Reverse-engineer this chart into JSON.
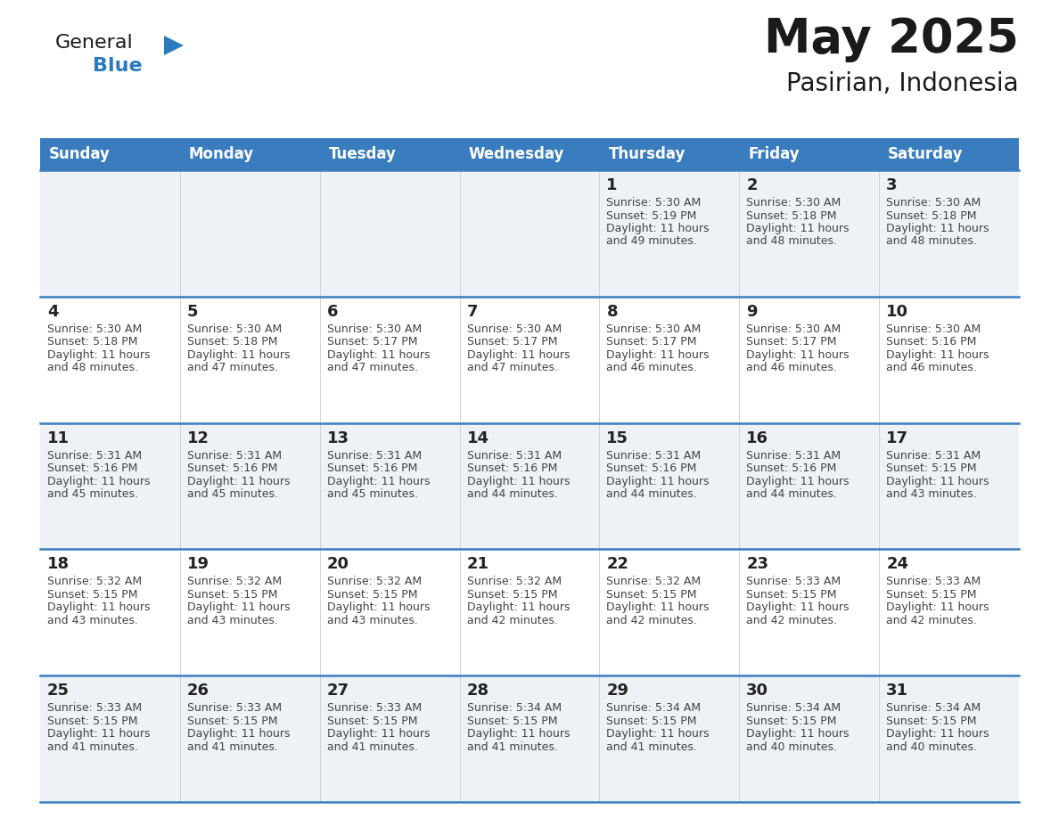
{
  "title": "May 2025",
  "subtitle": "Pasirian, Indonesia",
  "header_bg": "#3a7dbf",
  "header_text": "#ffffff",
  "row_bg_odd": "#eef2f7",
  "row_bg_even": "#ffffff",
  "border_color": "#3a7dbf",
  "text_color": "#222222",
  "info_color": "#444444",
  "logo_black": "#1a1a1a",
  "logo_blue": "#2a7abf",
  "triangle_blue": "#2a7abf",
  "day_headers": [
    "Sunday",
    "Monday",
    "Tuesday",
    "Wednesday",
    "Thursday",
    "Friday",
    "Saturday"
  ],
  "days": [
    {
      "num": "",
      "sunrise": "",
      "sunset": "",
      "daylight_h": "",
      "daylight_m": ""
    },
    {
      "num": "",
      "sunrise": "",
      "sunset": "",
      "daylight_h": "",
      "daylight_m": ""
    },
    {
      "num": "",
      "sunrise": "",
      "sunset": "",
      "daylight_h": "",
      "daylight_m": ""
    },
    {
      "num": "",
      "sunrise": "",
      "sunset": "",
      "daylight_h": "",
      "daylight_m": ""
    },
    {
      "num": "1",
      "sunrise": "5:30 AM",
      "sunset": "5:19 PM",
      "daylight_h": "11 hours",
      "daylight_m": "and 49 minutes."
    },
    {
      "num": "2",
      "sunrise": "5:30 AM",
      "sunset": "5:18 PM",
      "daylight_h": "11 hours",
      "daylight_m": "and 48 minutes."
    },
    {
      "num": "3",
      "sunrise": "5:30 AM",
      "sunset": "5:18 PM",
      "daylight_h": "11 hours",
      "daylight_m": "and 48 minutes."
    },
    {
      "num": "4",
      "sunrise": "5:30 AM",
      "sunset": "5:18 PM",
      "daylight_h": "11 hours",
      "daylight_m": "and 48 minutes."
    },
    {
      "num": "5",
      "sunrise": "5:30 AM",
      "sunset": "5:18 PM",
      "daylight_h": "11 hours",
      "daylight_m": "and 47 minutes."
    },
    {
      "num": "6",
      "sunrise": "5:30 AM",
      "sunset": "5:17 PM",
      "daylight_h": "11 hours",
      "daylight_m": "and 47 minutes."
    },
    {
      "num": "7",
      "sunrise": "5:30 AM",
      "sunset": "5:17 PM",
      "daylight_h": "11 hours",
      "daylight_m": "and 47 minutes."
    },
    {
      "num": "8",
      "sunrise": "5:30 AM",
      "sunset": "5:17 PM",
      "daylight_h": "11 hours",
      "daylight_m": "and 46 minutes."
    },
    {
      "num": "9",
      "sunrise": "5:30 AM",
      "sunset": "5:17 PM",
      "daylight_h": "11 hours",
      "daylight_m": "and 46 minutes."
    },
    {
      "num": "10",
      "sunrise": "5:30 AM",
      "sunset": "5:16 PM",
      "daylight_h": "11 hours",
      "daylight_m": "and 46 minutes."
    },
    {
      "num": "11",
      "sunrise": "5:31 AM",
      "sunset": "5:16 PM",
      "daylight_h": "11 hours",
      "daylight_m": "and 45 minutes."
    },
    {
      "num": "12",
      "sunrise": "5:31 AM",
      "sunset": "5:16 PM",
      "daylight_h": "11 hours",
      "daylight_m": "and 45 minutes."
    },
    {
      "num": "13",
      "sunrise": "5:31 AM",
      "sunset": "5:16 PM",
      "daylight_h": "11 hours",
      "daylight_m": "and 45 minutes."
    },
    {
      "num": "14",
      "sunrise": "5:31 AM",
      "sunset": "5:16 PM",
      "daylight_h": "11 hours",
      "daylight_m": "and 44 minutes."
    },
    {
      "num": "15",
      "sunrise": "5:31 AM",
      "sunset": "5:16 PM",
      "daylight_h": "11 hours",
      "daylight_m": "and 44 minutes."
    },
    {
      "num": "16",
      "sunrise": "5:31 AM",
      "sunset": "5:16 PM",
      "daylight_h": "11 hours",
      "daylight_m": "and 44 minutes."
    },
    {
      "num": "17",
      "sunrise": "5:31 AM",
      "sunset": "5:15 PM",
      "daylight_h": "11 hours",
      "daylight_m": "and 43 minutes."
    },
    {
      "num": "18",
      "sunrise": "5:32 AM",
      "sunset": "5:15 PM",
      "daylight_h": "11 hours",
      "daylight_m": "and 43 minutes."
    },
    {
      "num": "19",
      "sunrise": "5:32 AM",
      "sunset": "5:15 PM",
      "daylight_h": "11 hours",
      "daylight_m": "and 43 minutes."
    },
    {
      "num": "20",
      "sunrise": "5:32 AM",
      "sunset": "5:15 PM",
      "daylight_h": "11 hours",
      "daylight_m": "and 43 minutes."
    },
    {
      "num": "21",
      "sunrise": "5:32 AM",
      "sunset": "5:15 PM",
      "daylight_h": "11 hours",
      "daylight_m": "and 42 minutes."
    },
    {
      "num": "22",
      "sunrise": "5:32 AM",
      "sunset": "5:15 PM",
      "daylight_h": "11 hours",
      "daylight_m": "and 42 minutes."
    },
    {
      "num": "23",
      "sunrise": "5:33 AM",
      "sunset": "5:15 PM",
      "daylight_h": "11 hours",
      "daylight_m": "and 42 minutes."
    },
    {
      "num": "24",
      "sunrise": "5:33 AM",
      "sunset": "5:15 PM",
      "daylight_h": "11 hours",
      "daylight_m": "and 42 minutes."
    },
    {
      "num": "25",
      "sunrise": "5:33 AM",
      "sunset": "5:15 PM",
      "daylight_h": "11 hours",
      "daylight_m": "and 41 minutes."
    },
    {
      "num": "26",
      "sunrise": "5:33 AM",
      "sunset": "5:15 PM",
      "daylight_h": "11 hours",
      "daylight_m": "and 41 minutes."
    },
    {
      "num": "27",
      "sunrise": "5:33 AM",
      "sunset": "5:15 PM",
      "daylight_h": "11 hours",
      "daylight_m": "and 41 minutes."
    },
    {
      "num": "28",
      "sunrise": "5:34 AM",
      "sunset": "5:15 PM",
      "daylight_h": "11 hours",
      "daylight_m": "and 41 minutes."
    },
    {
      "num": "29",
      "sunrise": "5:34 AM",
      "sunset": "5:15 PM",
      "daylight_h": "11 hours",
      "daylight_m": "and 41 minutes."
    },
    {
      "num": "30",
      "sunrise": "5:34 AM",
      "sunset": "5:15 PM",
      "daylight_h": "11 hours",
      "daylight_m": "and 40 minutes."
    },
    {
      "num": "31",
      "sunrise": "5:34 AM",
      "sunset": "5:15 PM",
      "daylight_h": "11 hours",
      "daylight_m": "and 40 minutes."
    }
  ],
  "title_fontsize": 38,
  "subtitle_fontsize": 20,
  "header_fontsize": 12,
  "day_num_fontsize": 13,
  "info_fontsize": 9
}
